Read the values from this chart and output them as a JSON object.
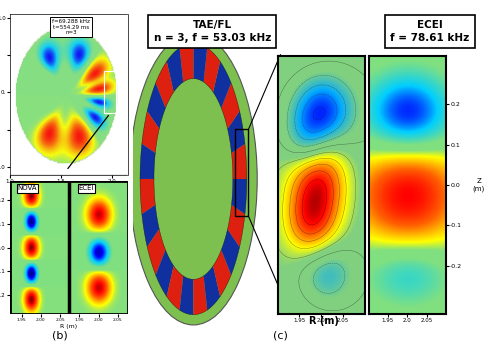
{
  "fig_width": 5.0,
  "fig_height": 3.49,
  "dpi": 100,
  "bg_color": "#ffffff",
  "label_b": "(b)",
  "label_c": "(c)",
  "title_taefl": "TAE/FL\nn = 3, f = 53.03 kHz",
  "title_ecei": "ECEI\nf = 78.61 kHz",
  "xlabel_c": "R (m)",
  "annotation_top": "f=69.288 kHz\nt=554.29 ms\nn=3",
  "label_nova": "NOVA",
  "label_ecei_b": "ECEI",
  "green_color": "#7dc050",
  "black_color": "#000000",
  "white_color": "#ffffff"
}
